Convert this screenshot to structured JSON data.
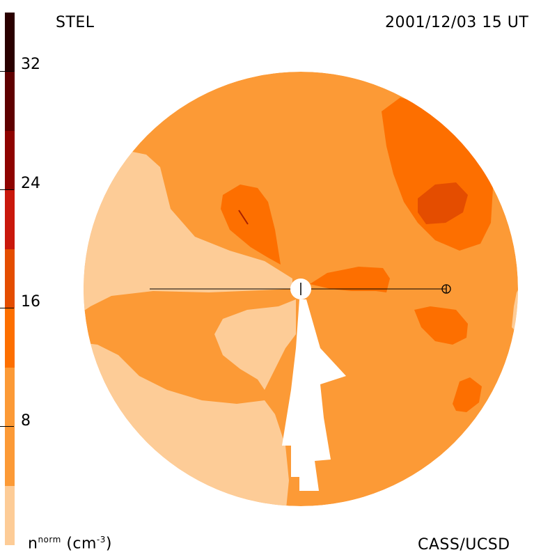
{
  "header": {
    "left_label": "STEL",
    "right_label": "2001/12/03 15 UT"
  },
  "footer": {
    "left_label_base": "n",
    "left_label_sup": "norm",
    "left_label_unit": "(cm",
    "left_label_unit_sup": "-3",
    "left_label_close": ")",
    "right_label": "CASS/UCSD"
  },
  "colorbar": {
    "ticks": [
      "32",
      "24",
      "16",
      "8"
    ],
    "colors": [
      "#fdcc97",
      "#fc9a36",
      "#fd6f00",
      "#e44d00",
      "#c9180c",
      "#8e0300",
      "#5f0000",
      "#2a0000"
    ]
  },
  "map_colors": {
    "level1": "#fdcc97",
    "level2": "#fc9a36",
    "level3": "#fd6f00",
    "level4": "#e44d00",
    "gap": "#ffffff"
  }
}
